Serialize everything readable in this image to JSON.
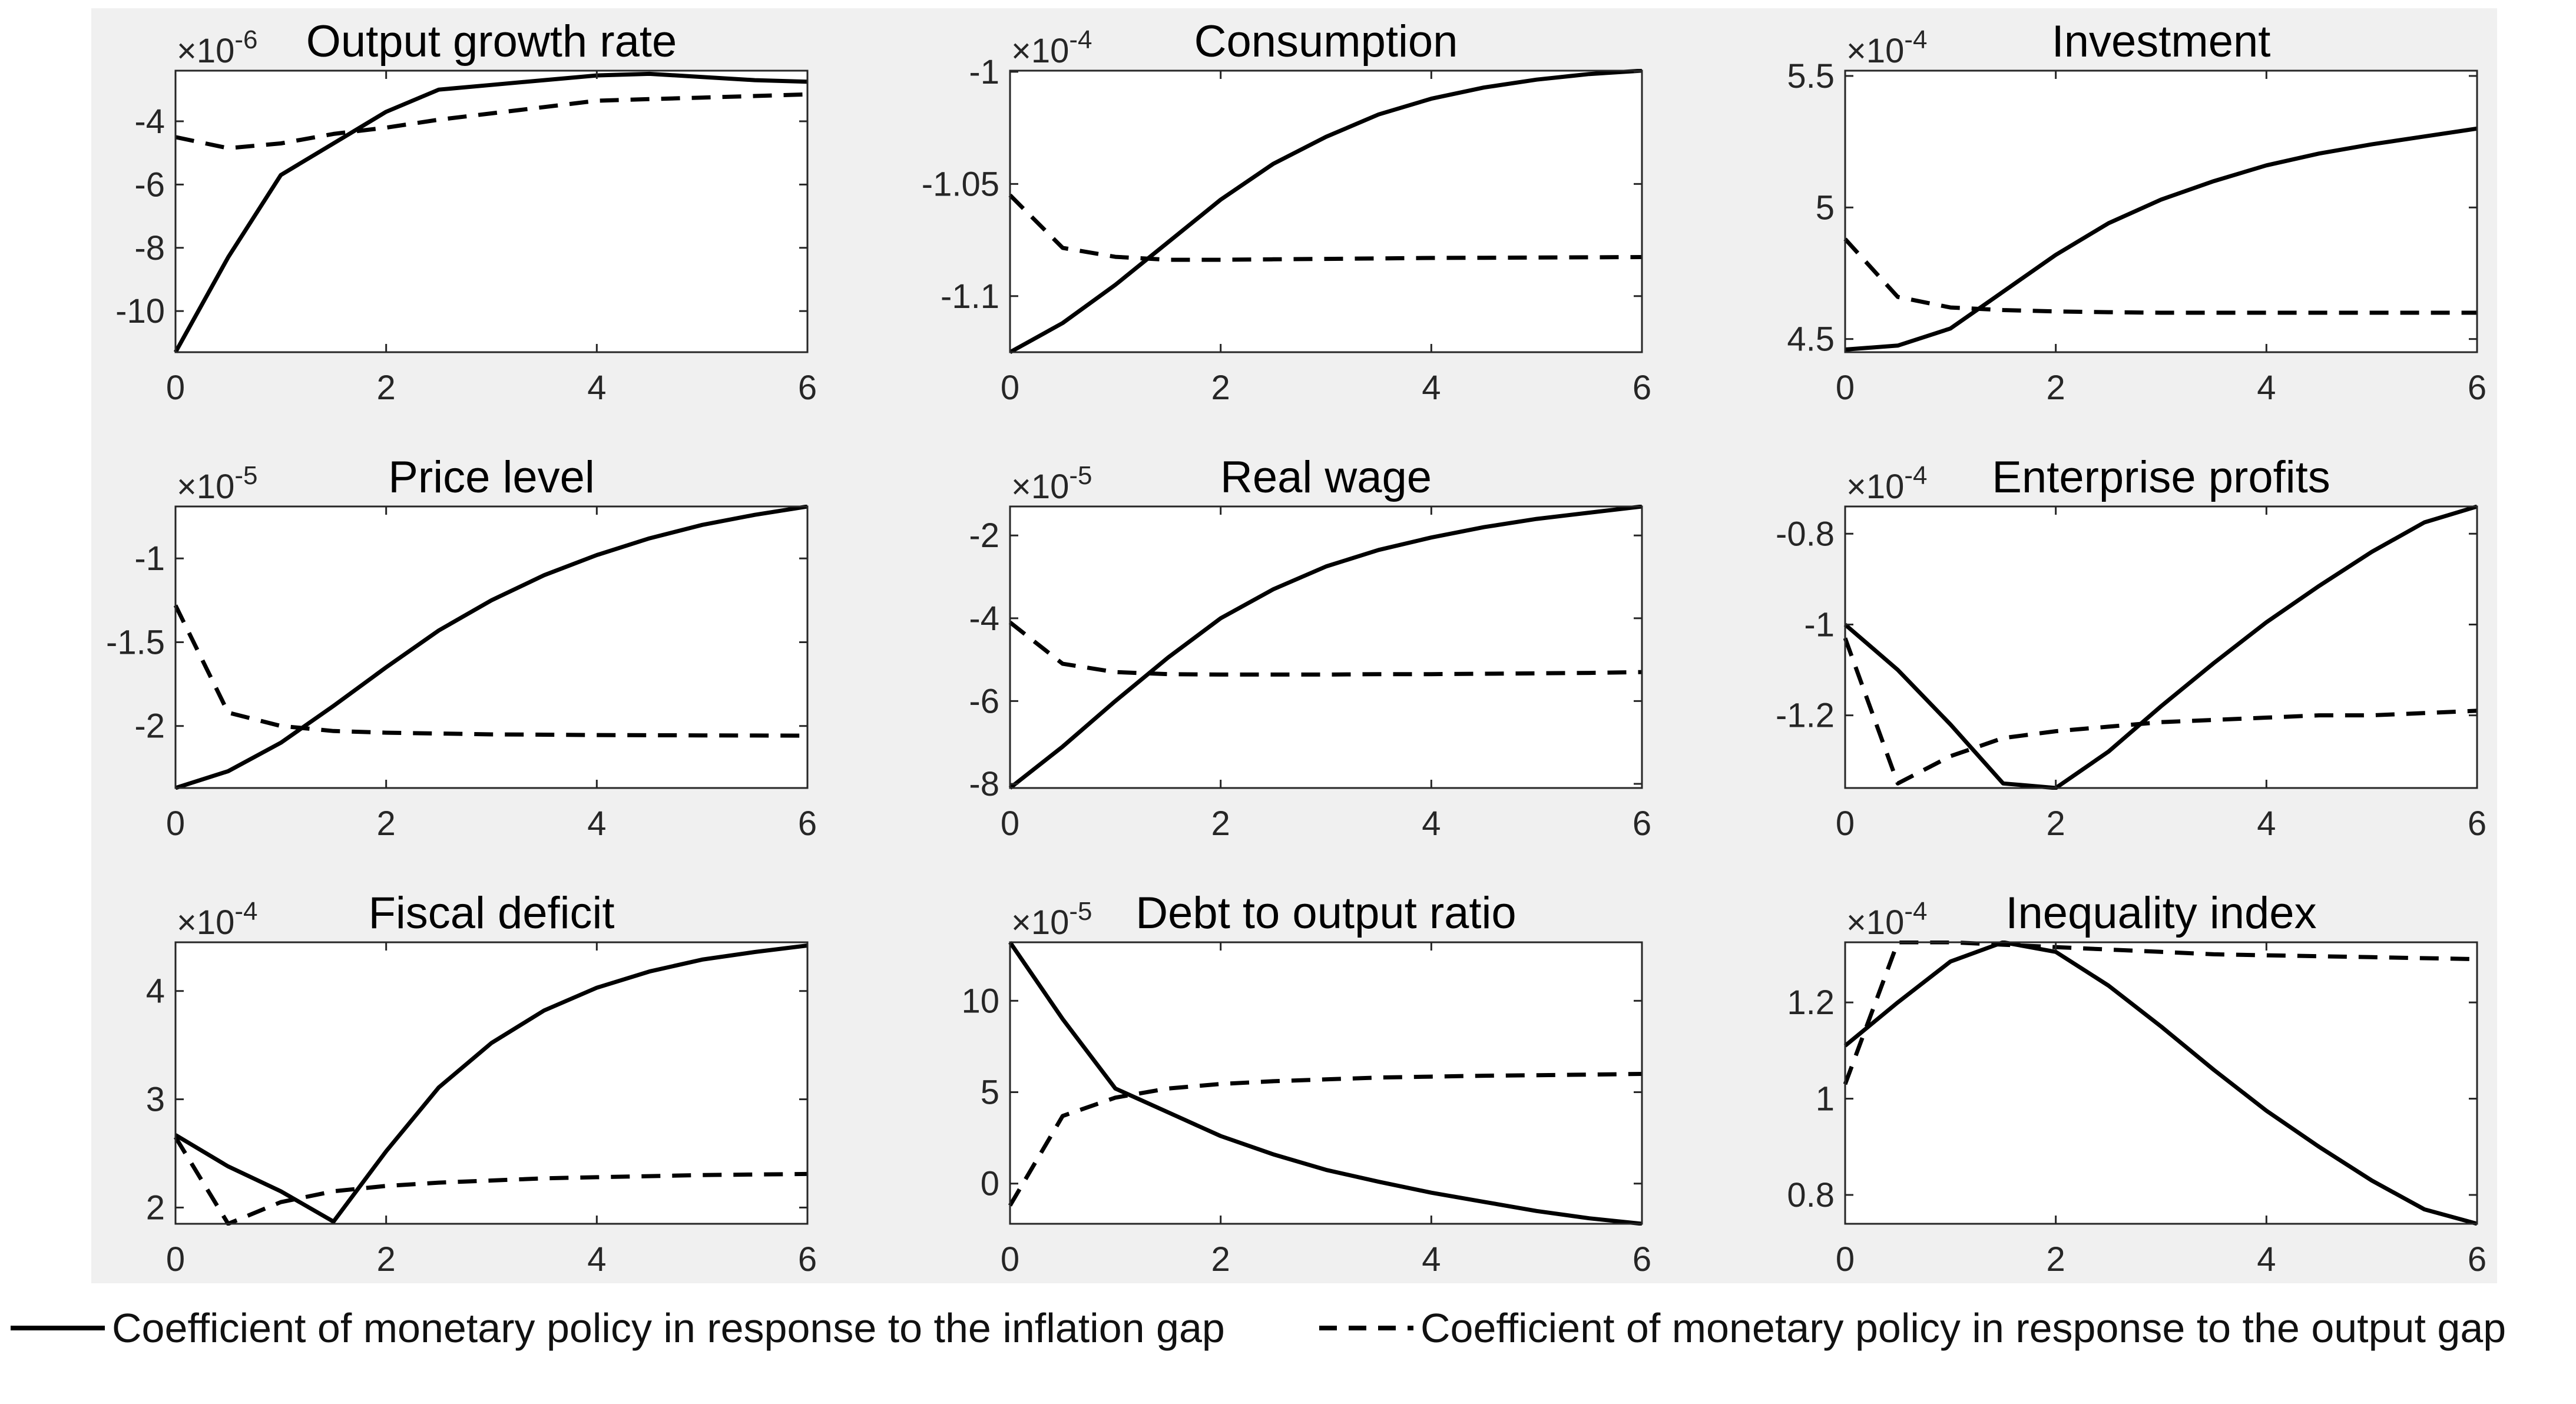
{
  "figure": {
    "background_color": "#f0f0f0",
    "plot_background_color": "#ffffff",
    "line_color": "#000000",
    "series_names": [
      "Coefficient of monetary policy in response to the inflation gap",
      "Coefficient of monetary policy in response to the output gap"
    ]
  },
  "chart_data": [
    {
      "type": "line",
      "title": "Output growth rate",
      "multiplier": "-6",
      "xlim": [
        0,
        6
      ],
      "ylim": [
        -11.3,
        -2.4
      ],
      "xticks": [
        0,
        2,
        4,
        6
      ],
      "xtick_labels": [
        "0",
        "2",
        "4",
        "6"
      ],
      "yticks": [
        -10,
        -8,
        -6,
        -4
      ],
      "ytick_labels": [
        "-10",
        "-8",
        "-6",
        "-4"
      ],
      "series": [
        {
          "name": "inflation gap",
          "style": "solid",
          "x": [
            0,
            0.5,
            1,
            1.5,
            2,
            2.5,
            3,
            3.5,
            4,
            4.5,
            5,
            5.5,
            6
          ],
          "values": [
            -11.3,
            -8.3,
            -5.7,
            -4.7,
            -3.7,
            -3.0,
            -2.85,
            -2.7,
            -2.55,
            -2.5,
            -2.6,
            -2.7,
            -2.75
          ]
        },
        {
          "name": "output gap",
          "style": "dashed",
          "x": [
            0,
            0.5,
            1,
            1.5,
            2,
            2.5,
            3,
            3.5,
            4,
            4.5,
            5,
            5.5,
            6
          ],
          "values": [
            -4.5,
            -4.85,
            -4.7,
            -4.4,
            -4.2,
            -3.95,
            -3.75,
            -3.55,
            -3.35,
            -3.3,
            -3.25,
            -3.2,
            -3.15
          ]
        }
      ]
    },
    {
      "type": "line",
      "title": "Consumption",
      "multiplier": "-4",
      "xlim": [
        0,
        6
      ],
      "ylim": [
        -1.125,
        -0.9995
      ],
      "xticks": [
        0,
        2,
        4,
        6
      ],
      "xtick_labels": [
        "0",
        "2",
        "4",
        "6"
      ],
      "yticks": [
        -1.1,
        -1.05,
        -1
      ],
      "ytick_labels": [
        "-1.1",
        "-1.05",
        "-1"
      ],
      "series": [
        {
          "name": "inflation gap",
          "style": "solid",
          "x": [
            0,
            0.5,
            1,
            1.5,
            2,
            2.5,
            3,
            3.5,
            4,
            4.5,
            5,
            5.5,
            6
          ],
          "values": [
            -1.125,
            -1.112,
            -1.095,
            -1.076,
            -1.057,
            -1.041,
            -1.029,
            -1.019,
            -1.012,
            -1.007,
            -1.0035,
            -1.001,
            -0.9995
          ]
        },
        {
          "name": "output gap",
          "style": "dashed",
          "x": [
            0,
            0.5,
            1,
            1.5,
            2,
            2.5,
            3,
            3.5,
            4,
            4.5,
            5,
            5.5,
            6
          ],
          "values": [
            -1.055,
            -1.0785,
            -1.0825,
            -1.0838,
            -1.0838,
            -1.0836,
            -1.0834,
            -1.0832,
            -1.083,
            -1.0829,
            -1.0828,
            -1.0827,
            -1.0826
          ]
        }
      ]
    },
    {
      "type": "line",
      "title": "Investment",
      "multiplier": "-4",
      "xlim": [
        0,
        6
      ],
      "ylim": [
        4.45,
        5.52
      ],
      "xticks": [
        0,
        2,
        4,
        6
      ],
      "xtick_labels": [
        "0",
        "2",
        "4",
        "6"
      ],
      "yticks": [
        4.5,
        5,
        5.5
      ],
      "ytick_labels": [
        "4.5",
        "5",
        "5.5"
      ],
      "series": [
        {
          "name": "inflation gap",
          "style": "solid",
          "x": [
            0,
            0.5,
            1,
            1.5,
            2,
            2.5,
            3,
            3.5,
            4,
            4.5,
            5,
            5.5,
            6
          ],
          "values": [
            4.46,
            4.475,
            4.54,
            4.68,
            4.82,
            4.94,
            5.03,
            5.1,
            5.16,
            5.205,
            5.24,
            5.27,
            5.3
          ]
        },
        {
          "name": "output gap",
          "style": "dashed",
          "x": [
            0,
            0.5,
            1,
            1.5,
            2,
            2.5,
            3,
            3.5,
            4,
            4.5,
            5,
            5.5,
            6
          ],
          "values": [
            4.88,
            4.66,
            4.62,
            4.61,
            4.605,
            4.602,
            4.6,
            4.6,
            4.6,
            4.6,
            4.6,
            4.6,
            4.6
          ]
        }
      ]
    },
    {
      "type": "line",
      "title": "Price level",
      "multiplier": "-5",
      "xlim": [
        0,
        6
      ],
      "ylim": [
        -2.37,
        -0.69
      ],
      "xticks": [
        0,
        2,
        4,
        6
      ],
      "xtick_labels": [
        "0",
        "2",
        "4",
        "6"
      ],
      "yticks": [
        -2,
        -1.5,
        -1
      ],
      "ytick_labels": [
        "-2",
        "-1.5",
        "-1"
      ],
      "series": [
        {
          "name": "inflation gap",
          "style": "solid",
          "x": [
            0,
            0.5,
            1,
            1.5,
            2,
            2.5,
            3,
            3.5,
            4,
            4.5,
            5,
            5.5,
            6
          ],
          "values": [
            -2.37,
            -2.27,
            -2.1,
            -1.88,
            -1.65,
            -1.43,
            -1.25,
            -1.1,
            -0.98,
            -0.88,
            -0.8,
            -0.74,
            -0.69
          ]
        },
        {
          "name": "output gap",
          "style": "dashed",
          "x": [
            0,
            0.5,
            1,
            1.5,
            2,
            2.5,
            3,
            3.5,
            4,
            4.5,
            5,
            5.5,
            6
          ],
          "values": [
            -1.28,
            -1.92,
            -2.0,
            -2.03,
            -2.04,
            -2.045,
            -2.05,
            -2.052,
            -2.054,
            -2.055,
            -2.056,
            -2.057,
            -2.058
          ]
        }
      ]
    },
    {
      "type": "line",
      "title": "Real wage",
      "multiplier": "-5",
      "xlim": [
        0,
        6
      ],
      "ylim": [
        -8.1,
        -1.3
      ],
      "xticks": [
        0,
        2,
        4,
        6
      ],
      "xtick_labels": [
        "0",
        "2",
        "4",
        "6"
      ],
      "yticks": [
        -8,
        -6,
        -4,
        -2
      ],
      "ytick_labels": [
        "-8",
        "-6",
        "-4",
        "-2"
      ],
      "series": [
        {
          "name": "inflation gap",
          "style": "solid",
          "x": [
            0,
            0.5,
            1,
            1.5,
            2,
            2.5,
            3,
            3.5,
            4,
            4.5,
            5,
            5.5,
            6
          ],
          "values": [
            -8.1,
            -7.1,
            -6.0,
            -4.95,
            -4.0,
            -3.3,
            -2.75,
            -2.35,
            -2.05,
            -1.8,
            -1.6,
            -1.45,
            -1.3
          ]
        },
        {
          "name": "output gap",
          "style": "dashed",
          "x": [
            0,
            0.5,
            1,
            1.5,
            2,
            2.5,
            3,
            3.5,
            4,
            4.5,
            5,
            5.5,
            6
          ],
          "values": [
            -4.1,
            -5.1,
            -5.3,
            -5.35,
            -5.36,
            -5.36,
            -5.36,
            -5.35,
            -5.35,
            -5.34,
            -5.33,
            -5.32,
            -5.3
          ]
        }
      ]
    },
    {
      "type": "line",
      "title": "Enterprise profits",
      "multiplier": "-4",
      "xlim": [
        0,
        6
      ],
      "ylim": [
        -1.36,
        -0.74
      ],
      "xticks": [
        0,
        2,
        4,
        6
      ],
      "xtick_labels": [
        "0",
        "2",
        "4",
        "6"
      ],
      "yticks": [
        -1.2,
        -1,
        -0.8
      ],
      "ytick_labels": [
        "-1.2",
        "-1",
        "-0.8"
      ],
      "series": [
        {
          "name": "inflation gap",
          "style": "solid",
          "x": [
            0,
            0.5,
            1,
            1.5,
            2,
            2.5,
            3,
            3.5,
            4,
            4.5,
            5,
            5.5,
            6
          ],
          "values": [
            -1.0,
            -1.1,
            -1.22,
            -1.35,
            -1.36,
            -1.28,
            -1.18,
            -1.085,
            -0.995,
            -0.915,
            -0.84,
            -0.775,
            -0.74
          ]
        },
        {
          "name": "output gap",
          "style": "dashed",
          "x": [
            0,
            0.5,
            1,
            1.5,
            2,
            2.5,
            3,
            3.5,
            4,
            4.5,
            5,
            5.5,
            6
          ],
          "values": [
            -1.03,
            -1.35,
            -1.29,
            -1.25,
            -1.235,
            -1.225,
            -1.215,
            -1.21,
            -1.205,
            -1.2,
            -1.2,
            -1.195,
            -1.19
          ]
        }
      ]
    },
    {
      "type": "line",
      "title": "Fiscal deficit",
      "multiplier": "-4",
      "xlim": [
        0,
        6
      ],
      "ylim": [
        1.85,
        4.45
      ],
      "xticks": [
        0,
        2,
        4,
        6
      ],
      "xtick_labels": [
        "0",
        "2",
        "4",
        "6"
      ],
      "yticks": [
        2,
        3,
        4
      ],
      "ytick_labels": [
        "2",
        "3",
        "4"
      ],
      "series": [
        {
          "name": "inflation gap",
          "style": "solid",
          "x": [
            0,
            0.5,
            1,
            1.5,
            2,
            2.5,
            3,
            3.5,
            4,
            4.5,
            5,
            5.5,
            6
          ],
          "values": [
            2.67,
            2.38,
            2.15,
            1.87,
            2.52,
            3.11,
            3.52,
            3.82,
            4.03,
            4.18,
            4.29,
            4.36,
            4.42
          ]
        },
        {
          "name": "output gap",
          "style": "dashed",
          "x": [
            0,
            0.5,
            1,
            1.5,
            2,
            2.5,
            3,
            3.5,
            4,
            4.5,
            5,
            5.5,
            6
          ],
          "values": [
            2.65,
            1.85,
            2.05,
            2.15,
            2.2,
            2.23,
            2.25,
            2.27,
            2.28,
            2.29,
            2.3,
            2.305,
            2.31
          ]
        }
      ]
    },
    {
      "type": "line",
      "title": "Debt to output ratio",
      "multiplier": "-5",
      "xlim": [
        0,
        6
      ],
      "ylim": [
        -2.2,
        13.2
      ],
      "xticks": [
        0,
        2,
        4,
        6
      ],
      "xtick_labels": [
        "0",
        "2",
        "4",
        "6"
      ],
      "yticks": [
        0,
        5,
        10
      ],
      "ytick_labels": [
        "0",
        "5",
        "10"
      ],
      "series": [
        {
          "name": "inflation gap",
          "style": "solid",
          "x": [
            0,
            0.5,
            1,
            1.5,
            2,
            2.5,
            3,
            3.5,
            4,
            4.5,
            5,
            5.5,
            6
          ],
          "values": [
            13.2,
            9.0,
            5.2,
            3.9,
            2.6,
            1.6,
            0.75,
            0.1,
            -0.5,
            -1.0,
            -1.5,
            -1.9,
            -2.2
          ]
        },
        {
          "name": "output gap",
          "style": "dashed",
          "x": [
            0,
            0.5,
            1,
            1.5,
            2,
            2.5,
            3,
            3.5,
            4,
            4.5,
            5,
            5.5,
            6
          ],
          "values": [
            -1.2,
            3.7,
            4.7,
            5.2,
            5.45,
            5.6,
            5.7,
            5.8,
            5.85,
            5.9,
            5.93,
            5.96,
            6.0
          ]
        }
      ]
    },
    {
      "type": "line",
      "title": "Inequality index",
      "multiplier": "-4",
      "xlim": [
        0,
        6
      ],
      "ylim": [
        0.74,
        1.325
      ],
      "xticks": [
        0,
        2,
        4,
        6
      ],
      "xtick_labels": [
        "0",
        "2",
        "4",
        "6"
      ],
      "yticks": [
        0.8,
        1,
        1.2
      ],
      "ytick_labels": [
        "0.8",
        "1",
        "1.2"
      ],
      "series": [
        {
          "name": "inflation gap",
          "style": "solid",
          "x": [
            0,
            0.5,
            1,
            1.5,
            2,
            2.5,
            3,
            3.5,
            4,
            4.5,
            5,
            5.5,
            6
          ],
          "values": [
            1.11,
            1.2,
            1.285,
            1.325,
            1.305,
            1.235,
            1.15,
            1.06,
            0.975,
            0.9,
            0.83,
            0.77,
            0.74
          ]
        },
        {
          "name": "output gap",
          "style": "dashed",
          "x": [
            0,
            0.5,
            1,
            1.5,
            2,
            2.5,
            3,
            3.5,
            4,
            4.5,
            5,
            5.5,
            6
          ],
          "values": [
            1.03,
            1.325,
            1.325,
            1.32,
            1.315,
            1.31,
            1.305,
            1.3,
            1.298,
            1.296,
            1.294,
            1.292,
            1.29
          ]
        }
      ]
    }
  ]
}
